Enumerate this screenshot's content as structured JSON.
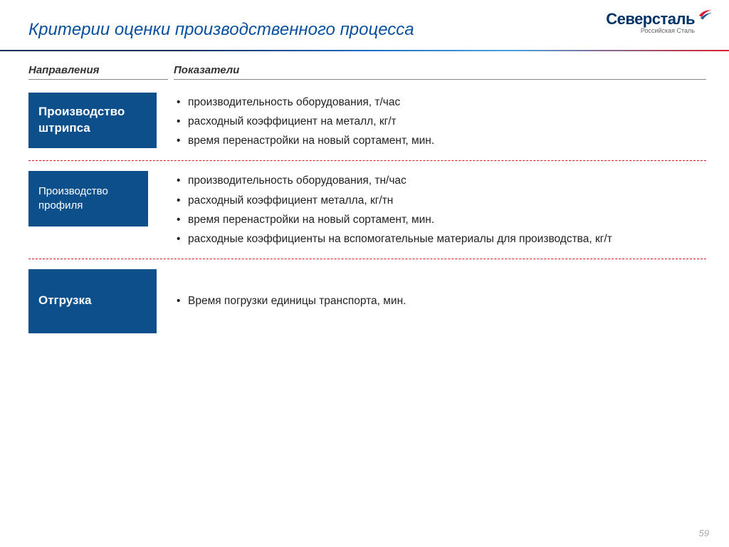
{
  "title": "Критерии оценки производственного процесса",
  "logo": {
    "main": "Северсталь",
    "sub": "Российская Сталь"
  },
  "headers": {
    "left": "Направления",
    "right": "Показатели"
  },
  "rows": [
    {
      "label": "Производство штрипса",
      "box_class": "box-a",
      "dashed": true,
      "bullets": [
        "производительность оборудования, т/час",
        "расходный коэффициент на металл, кг/т",
        "время перенастройки на новый сортамент, мин."
      ]
    },
    {
      "label": "Производство профиля",
      "box_class": "box-b",
      "dashed": true,
      "bullets": [
        "производительность оборудования, тн/час",
        "расходный коэффициент металла, кг/тн",
        "время перенастройки на новый сортамент, мин.",
        "расходные коэффициенты на вспомогательные материалы для производства, кг/т"
      ]
    },
    {
      "label": "Отгрузка",
      "box_class": "box-c",
      "dashed": false,
      "bullets": [
        "Время погрузки единицы транспорта, мин."
      ]
    }
  ],
  "page_number": "59",
  "colors": {
    "title": "#0a4f9e",
    "box_bg": "#0d4f8b",
    "dashed_border": "#d81e2c",
    "grad_start": "#002b5c",
    "grad_mid": "#1a6bc4",
    "grad_end": "#d81e2c"
  }
}
